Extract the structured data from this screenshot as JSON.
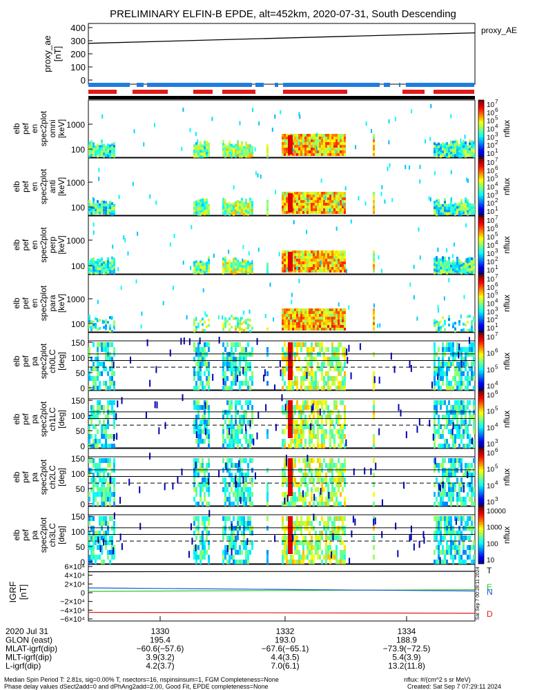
{
  "title": "PRELIMINARY ELFIN-B EPDE, alt=452km, 2020-07-31, South Descending",
  "colors": {
    "bar_blue": "#1f7de0",
    "bar_red": "#e01a1a",
    "proxy_line": "#000000",
    "igrf_black": "#000000",
    "igrf_green": "#22cc22",
    "igrf_blue": "#1f4fe0",
    "igrf_red": "#e01a1a"
  },
  "proxy_ae": {
    "ylabel": [
      "proxy_ae",
      "[nT]"
    ],
    "legend": "proxy_AE",
    "ticks": [
      "400",
      "300",
      "200",
      "100",
      "0"
    ]
  },
  "panels": [
    {
      "ylabel": [
        "elb",
        "pef",
        "en",
        "spec2plot",
        "omni",
        "[keV]"
      ],
      "ticks": [
        "1000",
        "100"
      ],
      "cb_ticks": [
        "10",
        "10",
        "10",
        "10",
        "10",
        "10",
        "10"
      ],
      "cb_exp": [
        "7",
        "6",
        "5",
        "4",
        "3",
        "2",
        "1"
      ],
      "cb_label": "nflux"
    },
    {
      "ylabel": [
        "elb",
        "pef",
        "en",
        "spec2plot",
        "anti",
        "[keV]"
      ],
      "ticks": [
        "1000",
        "100"
      ],
      "cb_ticks": [
        "10",
        "10",
        "10",
        "10",
        "10",
        "10",
        "10"
      ],
      "cb_exp": [
        "7",
        "6",
        "5",
        "4",
        "3",
        "2",
        "1"
      ],
      "cb_label": "nflux"
    },
    {
      "ylabel": [
        "elb",
        "pef",
        "en",
        "spec2plot",
        "perp",
        "[keV]"
      ],
      "ticks": [
        "1000",
        "100"
      ],
      "cb_ticks": [
        "10",
        "10",
        "10",
        "10",
        "10",
        "10",
        "10"
      ],
      "cb_exp": [
        "7",
        "6",
        "5",
        "4",
        "3",
        "2",
        "1"
      ],
      "cb_label": "nflux"
    },
    {
      "ylabel": [
        "elb",
        "pef",
        "en",
        "spec2plot",
        "para",
        "[keV]"
      ],
      "ticks": [
        "1000",
        "100"
      ],
      "cb_ticks": [
        "10",
        "10",
        "10",
        "10",
        "10",
        "10",
        "10"
      ],
      "cb_exp": [
        "7",
        "6",
        "5",
        "4",
        "3",
        "2",
        "1"
      ],
      "cb_label": "nflux"
    },
    {
      "ylabel": [
        "elb",
        "pef",
        "pa",
        "spec2plot",
        "ch0LC",
        "[deg]"
      ],
      "ticks": [
        "150",
        "100",
        "50",
        "0"
      ],
      "cb_ticks": [
        "10",
        "10",
        "10",
        "10"
      ],
      "cb_exp": [
        "7",
        "6",
        "5",
        "4"
      ],
      "cb_label": "nflux"
    },
    {
      "ylabel": [
        "elb",
        "pef",
        "pa",
        "spec2plot",
        "ch1LC",
        "[deg]"
      ],
      "ticks": [
        "150",
        "100",
        "50",
        "0"
      ],
      "cb_ticks": [
        "10",
        "10",
        "10",
        "10"
      ],
      "cb_exp": [
        "6",
        "5",
        "4",
        "3"
      ],
      "cb_label": "nflux"
    },
    {
      "ylabel": [
        "elb",
        "pef",
        "pa",
        "spec2plot",
        "ch2LC",
        "[deg]"
      ],
      "ticks": [
        "150",
        "100",
        "50",
        "0"
      ],
      "cb_ticks": [
        "10",
        "10",
        "10",
        "10"
      ],
      "cb_exp": [
        "6",
        "5",
        "4",
        "3",
        "2"
      ],
      "cb_label": "nflux"
    },
    {
      "ylabel": [
        "elb",
        "pef",
        "pa",
        "spec2plot",
        "ch3LC",
        "[deg]"
      ],
      "ticks": [
        "150",
        "100",
        "50",
        "0"
      ],
      "cb_ticks": [
        "10000",
        "1000",
        "100",
        "10"
      ],
      "cb_exp": [],
      "cb_label": "nflux"
    }
  ],
  "igrf": {
    "ylabel": [
      "IGRF",
      "[nT]"
    ],
    "ticks": [
      "6×10⁴",
      "4×10⁴",
      "2×10⁴",
      "0",
      "−2×10⁴",
      "−4×10⁴",
      "−6×10⁴"
    ],
    "legend": [
      "T",
      "E",
      "N",
      "D"
    ],
    "side_text": "Sat Sep 7 00:28:11 2024"
  },
  "chart_data": [
    {
      "type": "line",
      "title": "",
      "ylabel": "proxy_ae [nT]",
      "ylim": [
        0,
        400
      ],
      "series": [
        {
          "name": "proxy_AE",
          "x": [
            "1328.6",
            "1336.2"
          ],
          "values": [
            280,
            360
          ]
        }
      ]
    },
    {
      "type": "line",
      "ylabel": "IGRF [nT]",
      "ylim": [
        -60000,
        60000
      ],
      "series": [
        {
          "name": "T",
          "values": [
            48000,
            49000
          ]
        },
        {
          "name": "E",
          "values": [
            3000,
            7000
          ]
        },
        {
          "name": "N",
          "values": [
            11000,
            4000
          ]
        },
        {
          "name": "D",
          "values": [
            -45000,
            -47000
          ]
        }
      ]
    }
  ],
  "xaxis": {
    "rows": [
      {
        "label": "2020 Jul 31",
        "values": [
          "1330",
          "1332",
          "1334"
        ]
      },
      {
        "label": "GLON (east)",
        "values": [
          "195.4",
          "193.0",
          "188.9"
        ]
      },
      {
        "label": "MLAT-igrf(dip)",
        "values": [
          "−60.6(−57.6)",
          "−67.6(−65.1)",
          "−73.9(−72.5)"
        ]
      },
      {
        "label": "MLT-igrf(dip)",
        "values": [
          "3.9(3.2)",
          "4.4(3.5)",
          "5.4(3.9)"
        ]
      },
      {
        "label": "L-igrf(dip)",
        "values": [
          "4.2(3.7)",
          "7.0(6.1)",
          "13.2(11.8)"
        ]
      }
    ]
  },
  "footer": {
    "left1": "Median Spin Period T: 2.81s, sig=0.00% T, nsectors=16, nspinsinsum=1, FGM Completeness=None",
    "left2": "Phase delay values dSect2add=0 and dPhAng2add=2.00, Good Fit, EPDE completeness=None",
    "right1": "nflux: #/(cm^2 s sr MeV)",
    "right2": "Created: Sat Sep  7 07:29:11 2024"
  }
}
